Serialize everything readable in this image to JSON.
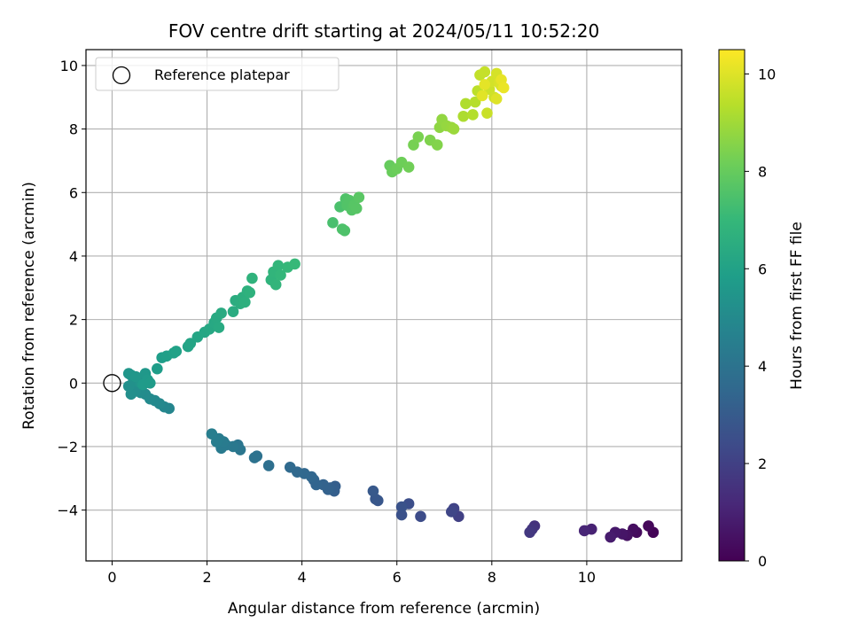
{
  "chart_data": {
    "type": "scatter",
    "title": "FOV centre drift starting at 2024/05/11 10:52:20",
    "xlabel": "Angular distance from reference (arcmin)",
    "ylabel": "Rotation from reference (arcmin)",
    "xlim": [
      -0.55,
      12.0
    ],
    "ylim": [
      -5.6,
      10.5
    ],
    "xticks": [
      0,
      2,
      4,
      6,
      8,
      10
    ],
    "yticks": [
      -4,
      -2,
      0,
      2,
      4,
      6,
      8,
      10
    ],
    "x_tick_labels": [
      "0",
      "2",
      "4",
      "6",
      "8",
      "10"
    ],
    "y_tick_labels": [
      "−4",
      "−2",
      "0",
      "2",
      "4",
      "6",
      "8",
      "10"
    ],
    "grid": true,
    "legend_position": "top-left",
    "legend": [
      {
        "label": "Reference platepar",
        "marker": "open-circle"
      }
    ],
    "reference_point": {
      "x": 0,
      "y": 0
    },
    "colorbar": {
      "label": "Hours from first FF file",
      "colormap": "viridis",
      "range": [
        0,
        10.5
      ],
      "ticks": [
        0,
        2,
        4,
        6,
        8,
        10
      ],
      "tick_labels": [
        "0",
        "2",
        "4",
        "6",
        "8",
        "10"
      ],
      "stops": [
        "#440154",
        "#482878",
        "#3e4a89",
        "#31688e",
        "#26828e",
        "#1f9e89",
        "#35b779",
        "#6ece58",
        "#b5de2b",
        "#fde725"
      ]
    },
    "series": [
      {
        "points": [
          [
            11.4,
            -4.7,
            0.1
          ],
          [
            11.3,
            -4.5,
            0.2
          ],
          [
            11.05,
            -4.7,
            0.3
          ],
          [
            10.98,
            -4.6,
            0.4
          ],
          [
            10.85,
            -4.8,
            0.5
          ],
          [
            10.75,
            -4.75,
            0.6
          ],
          [
            10.6,
            -4.7,
            0.7
          ],
          [
            10.5,
            -4.85,
            0.8
          ],
          [
            10.1,
            -4.6,
            1.0
          ],
          [
            9.95,
            -4.65,
            1.1
          ],
          [
            8.9,
            -4.5,
            1.5
          ],
          [
            8.85,
            -4.6,
            1.6
          ],
          [
            8.8,
            -4.7,
            1.7
          ],
          [
            7.3,
            -4.2,
            2.0
          ],
          [
            7.2,
            -3.95,
            2.1
          ],
          [
            7.15,
            -4.05,
            2.2
          ],
          [
            6.5,
            -4.2,
            2.4
          ],
          [
            6.25,
            -3.8,
            2.5
          ],
          [
            6.1,
            -4.15,
            2.6
          ],
          [
            6.1,
            -3.9,
            2.65
          ],
          [
            5.6,
            -3.7,
            2.8
          ],
          [
            5.55,
            -3.65,
            2.85
          ],
          [
            5.5,
            -3.4,
            2.9
          ],
          [
            4.7,
            -3.25,
            3.1
          ],
          [
            4.68,
            -3.4,
            3.15
          ],
          [
            4.6,
            -3.3,
            3.2
          ],
          [
            4.55,
            -3.35,
            3.25
          ],
          [
            4.45,
            -3.2,
            3.3
          ],
          [
            4.25,
            -3.05,
            3.35
          ],
          [
            4.3,
            -3.2,
            3.4
          ],
          [
            4.2,
            -2.95,
            3.45
          ],
          [
            4.05,
            -2.85,
            3.5
          ],
          [
            3.9,
            -2.8,
            3.55
          ],
          [
            3.75,
            -2.65,
            3.6
          ],
          [
            3.3,
            -2.6,
            3.8
          ],
          [
            3.05,
            -2.3,
            3.9
          ],
          [
            3.0,
            -2.35,
            3.95
          ],
          [
            2.65,
            -1.95,
            4.1
          ],
          [
            2.7,
            -2.1,
            4.15
          ],
          [
            2.55,
            -2.0,
            4.2
          ],
          [
            2.4,
            -1.95,
            4.25
          ],
          [
            2.3,
            -2.05,
            4.3
          ],
          [
            2.35,
            -1.85,
            4.35
          ],
          [
            2.25,
            -1.75,
            4.4
          ],
          [
            2.2,
            -1.85,
            4.45
          ],
          [
            2.1,
            -1.6,
            4.5
          ],
          [
            1.2,
            -0.8,
            4.8
          ],
          [
            1.1,
            -0.75,
            4.85
          ],
          [
            1.0,
            -0.65,
            4.9
          ],
          [
            0.9,
            -0.55,
            4.95
          ],
          [
            0.8,
            -0.5,
            5.0
          ],
          [
            0.7,
            -0.35,
            5.05
          ],
          [
            0.6,
            -0.3,
            5.1
          ],
          [
            0.5,
            -0.25,
            5.15
          ],
          [
            0.4,
            -0.35,
            5.2
          ],
          [
            0.35,
            -0.1,
            5.25
          ],
          [
            0.45,
            0.05,
            5.3
          ],
          [
            0.55,
            0.15,
            5.35
          ],
          [
            0.6,
            0.0,
            5.4
          ],
          [
            0.4,
            0.25,
            5.45
          ],
          [
            0.35,
            0.3,
            5.5
          ],
          [
            0.5,
            0.2,
            5.55
          ],
          [
            0.7,
            0.3,
            5.6
          ],
          [
            0.75,
            0.1,
            5.65
          ],
          [
            0.65,
            -0.05,
            5.7
          ],
          [
            0.8,
            0.0,
            5.72
          ],
          [
            0.95,
            0.45,
            5.8
          ],
          [
            1.05,
            0.8,
            5.85
          ],
          [
            1.15,
            0.85,
            5.9
          ],
          [
            1.3,
            0.95,
            5.95
          ],
          [
            1.35,
            1.0,
            6.0
          ],
          [
            1.6,
            1.15,
            6.05
          ],
          [
            1.65,
            1.25,
            6.1
          ],
          [
            1.8,
            1.45,
            6.15
          ],
          [
            1.95,
            1.6,
            6.2
          ],
          [
            2.05,
            1.7,
            6.25
          ],
          [
            2.15,
            1.9,
            6.3
          ],
          [
            2.2,
            2.05,
            6.35
          ],
          [
            2.25,
            1.75,
            6.37
          ],
          [
            2.3,
            2.2,
            6.4
          ],
          [
            2.55,
            2.25,
            6.45
          ],
          [
            2.6,
            2.6,
            6.5
          ],
          [
            2.7,
            2.5,
            6.55
          ],
          [
            2.75,
            2.7,
            6.6
          ],
          [
            2.8,
            2.55,
            6.62
          ],
          [
            2.85,
            2.9,
            6.65
          ],
          [
            2.9,
            2.85,
            6.7
          ],
          [
            2.95,
            3.3,
            6.75
          ],
          [
            3.35,
            3.25,
            6.8
          ],
          [
            3.4,
            3.5,
            6.85
          ],
          [
            3.45,
            3.1,
            6.88
          ],
          [
            3.5,
            3.7,
            6.9
          ],
          [
            3.55,
            3.4,
            6.95
          ],
          [
            3.7,
            3.65,
            7.0
          ],
          [
            3.85,
            3.75,
            7.05
          ],
          [
            4.65,
            5.05,
            7.4
          ],
          [
            4.8,
            5.55,
            7.45
          ],
          [
            4.85,
            4.85,
            7.5
          ],
          [
            4.9,
            4.8,
            7.52
          ],
          [
            4.92,
            5.8,
            7.55
          ],
          [
            4.95,
            5.6,
            7.6
          ],
          [
            5.0,
            5.75,
            7.62
          ],
          [
            5.05,
            5.45,
            7.65
          ],
          [
            5.1,
            5.6,
            7.7
          ],
          [
            5.15,
            5.5,
            7.72
          ],
          [
            5.2,
            5.85,
            7.75
          ],
          [
            5.85,
            6.85,
            8.0
          ],
          [
            5.9,
            6.65,
            8.05
          ],
          [
            6.0,
            6.75,
            8.1
          ],
          [
            6.1,
            6.95,
            8.15
          ],
          [
            6.25,
            6.8,
            8.2
          ],
          [
            6.35,
            7.5,
            8.3
          ],
          [
            6.45,
            7.75,
            8.35
          ],
          [
            6.7,
            7.65,
            8.45
          ],
          [
            6.85,
            7.5,
            8.5
          ],
          [
            6.9,
            8.05,
            8.7
          ],
          [
            6.95,
            8.3,
            8.75
          ],
          [
            7.05,
            8.1,
            8.8
          ],
          [
            7.15,
            8.05,
            8.85
          ],
          [
            7.2,
            8.0,
            8.9
          ],
          [
            7.4,
            8.4,
            9.2
          ],
          [
            7.45,
            8.8,
            9.25
          ],
          [
            7.6,
            8.45,
            9.3
          ],
          [
            7.65,
            8.85,
            9.35
          ],
          [
            7.7,
            9.2,
            9.45
          ],
          [
            7.75,
            9.7,
            9.55
          ],
          [
            7.85,
            9.8,
            9.6
          ],
          [
            7.9,
            8.5,
            9.65
          ],
          [
            7.95,
            9.25,
            9.7
          ],
          [
            8.05,
            9.0,
            9.75
          ],
          [
            8.0,
            9.5,
            9.8
          ],
          [
            8.1,
            9.75,
            9.85
          ],
          [
            8.15,
            9.45,
            9.9
          ],
          [
            8.2,
            9.35,
            9.95
          ],
          [
            8.1,
            8.95,
            10.0
          ],
          [
            7.8,
            9.05,
            10.05
          ],
          [
            7.85,
            9.4,
            10.1
          ],
          [
            8.2,
            9.55,
            10.15
          ],
          [
            8.25,
            9.3,
            10.2
          ]
        ]
      }
    ]
  }
}
